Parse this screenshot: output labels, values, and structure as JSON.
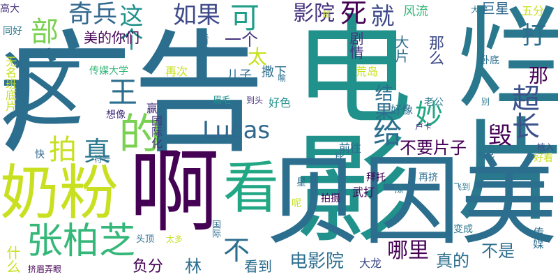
{
  "wordcloud": {
    "words": [
      {
        "text": "广告",
        "color": "#2c6e8e"
      },
      {
        "text": "电影",
        "color": "#21918c"
      },
      {
        "text": "烂片",
        "color": "#2a788e"
      },
      {
        "text": "啊",
        "color": "#440154"
      },
      {
        "text": "贝因美",
        "color": "#2c6e8e"
      },
      {
        "text": "奶粉",
        "color": "#c8e020"
      },
      {
        "text": "看",
        "color": "#22a785"
      },
      {
        "text": "这",
        "color": "#2c6e8e"
      },
      {
        "text": "张柏芝",
        "color": "#35b779"
      },
      {
        "text": "给",
        "color": "#2c6e8e"
      },
      {
        "text": "拍",
        "color": "#c8e020"
      },
      {
        "text": "真",
        "color": "#2a788e"
      },
      {
        "text": "的",
        "color": "#7ad151"
      },
      {
        "text": "Lucas",
        "color": "#31688e"
      },
      {
        "text": "妙",
        "color": "#22a785"
      },
      {
        "text": "超长",
        "color": "#3b528b"
      },
      {
        "text": "打",
        "color": "#2c6e8e"
      },
      {
        "text": "部",
        "color": "#7ad151"
      },
      {
        "text": "奇兵",
        "color": "#31688e"
      },
      {
        "text": "这个",
        "color": "#21918c"
      },
      {
        "text": "如果",
        "color": "#3e4a89"
      },
      {
        "text": "可",
        "color": "#1f9e89"
      },
      {
        "text": "影院",
        "color": "#46327e"
      },
      {
        "text": "死",
        "color": "#440154"
      },
      {
        "text": "就",
        "color": "#3e4a89"
      },
      {
        "text": "风流",
        "color": "#35b779"
      },
      {
        "text": "大学",
        "color": "#2a788e"
      },
      {
        "text": "巨星",
        "color": "#31688e"
      },
      {
        "text": "五分",
        "color": "#c8e020"
      },
      {
        "text": "高大",
        "color": "#46327e"
      },
      {
        "text": "同好",
        "color": "#2a788e"
      },
      {
        "text": "美的你们",
        "color": "#440154"
      },
      {
        "text": "王",
        "color": "#2c6e8e"
      },
      {
        "text": "一个",
        "color": "#46327e"
      },
      {
        "text": "太",
        "color": "#c8e020"
      },
      {
        "text": "儿子",
        "color": "#2c6e8e"
      },
      {
        "text": "撒下",
        "color": "#2c6e8e"
      },
      {
        "text": "那么",
        "color": "#3e4a89"
      },
      {
        "text": "那",
        "color": "#440154"
      },
      {
        "text": "毁",
        "color": "#440154"
      },
      {
        "text": "结果",
        "color": "#2c6e8e"
      },
      {
        "text": "不要片子",
        "color": "#440154"
      },
      {
        "text": "负分",
        "color": "#440154"
      },
      {
        "text": "林",
        "color": "#2c6e8e"
      },
      {
        "text": "不",
        "color": "#2c6e8e"
      },
      {
        "text": "看到",
        "color": "#2c6e8e"
      },
      {
        "text": "电影院",
        "color": "#2c6e8e"
      },
      {
        "text": "哪里",
        "color": "#440154"
      },
      {
        "text": "真的",
        "color": "#2c6e8e"
      },
      {
        "text": "不是",
        "color": "#2c6e8e"
      },
      {
        "text": "什么",
        "color": "#c8e020"
      },
      {
        "text": "大龙",
        "color": "#3e4a89"
      },
      {
        "text": "传媒大学",
        "color": "#35b779"
      },
      {
        "text": "无名班底片",
        "color": "#c8e020"
      },
      {
        "text": "再次",
        "color": "#c8e020"
      },
      {
        "text": "荒岛",
        "color": "#c8e020"
      },
      {
        "text": "好色",
        "color": "#21918c"
      },
      {
        "text": "眉毛",
        "color": "#21918c"
      },
      {
        "text": "到头",
        "color": "#46327e"
      },
      {
        "text": "想像",
        "color": "#46327e"
      },
      {
        "text": "赢",
        "color": "#46327e"
      },
      {
        "text": "国际化",
        "color": "#46327e"
      },
      {
        "text": "前往",
        "color": "#2c6e8e"
      },
      {
        "text": "好像",
        "color": "#2c6e8e"
      },
      {
        "text": "老公",
        "color": "#2a788e"
      },
      {
        "text": "卢卡",
        "color": "#46327e"
      },
      {
        "text": "别",
        "color": "#2a788e"
      },
      {
        "text": "植入",
        "color": "#3e4a89"
      },
      {
        "text": "好看",
        "color": "#c8e020"
      },
      {
        "text": "耐克",
        "color": "#2c6e8e"
      },
      {
        "text": "快",
        "color": "#31688e"
      },
      {
        "text": "符号",
        "color": "#2c6e8e"
      },
      {
        "text": "比",
        "color": "#2c6e8e"
      },
      {
        "text": "星",
        "color": "#2c6e8e"
      },
      {
        "text": "拜托",
        "color": "#440154"
      },
      {
        "text": "再挤",
        "color": "#2c6e8e"
      },
      {
        "text": "飞到",
        "color": "#2a788e"
      },
      {
        "text": "擦",
        "color": "#2a788e"
      },
      {
        "text": "武打",
        "color": "#440154"
      },
      {
        "text": "拍摄",
        "color": "#440154"
      },
      {
        "text": "呢",
        "color": "#c8e020"
      },
      {
        "text": "国际",
        "color": "#2c6e8e"
      },
      {
        "text": "变成",
        "color": "#2a788e"
      },
      {
        "text": "传媒",
        "color": "#2c6e8e"
      },
      {
        "text": "头顶",
        "color": "#2c6e8e"
      },
      {
        "text": "太多",
        "color": "#c8e020"
      },
      {
        "text": "挤眉弄眼",
        "color": "#440154"
      },
      {
        "text": "看过",
        "color": "#2c6e8e"
      },
      {
        "text": "剧情",
        "color": "#46327e"
      },
      {
        "text": "大片",
        "color": "#2c6e8e"
      },
      {
        "text": "卧底",
        "color": "#2c6e8e"
      },
      {
        "text": "邮",
        "color": "#c8e020"
      },
      {
        "text": "喻",
        "color": "#2c6e8e"
      },
      {
        "text": "翻",
        "color": "#2c6e8e"
      }
    ]
  }
}
